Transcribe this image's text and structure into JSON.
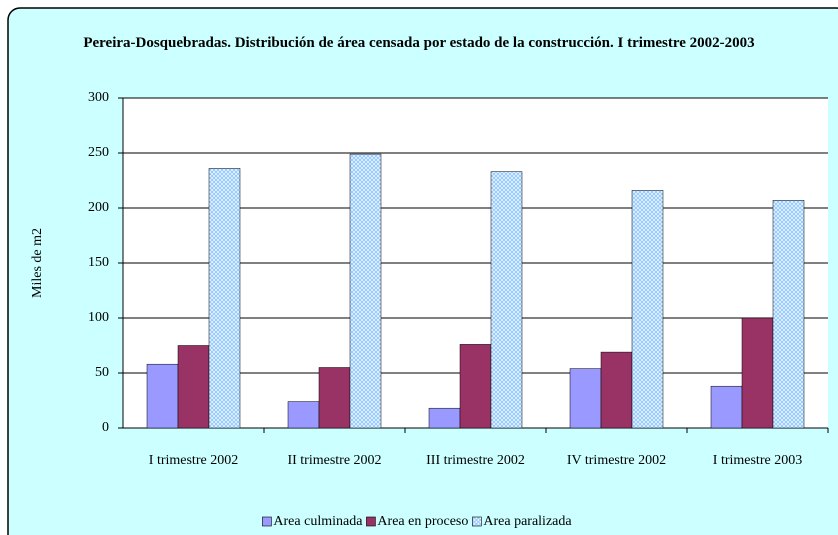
{
  "chart_data": {
    "type": "bar",
    "title": "Pereira-Dosquebradas. Distribución de área censada por estado de la construcción. I trimestre 2002-2003",
    "y_label": "Miles de m2",
    "categories": [
      "I trimestre 2002",
      "II trimestre 2002",
      "III trimestre 2002",
      "IV trimestre 2002",
      "I trimestre 2003"
    ],
    "series": [
      {
        "name": "Area culminada",
        "color": "#9999ff",
        "values": [
          58,
          24,
          18,
          54,
          38
        ]
      },
      {
        "name": "Area en proceso",
        "color": "#993366",
        "values": [
          75,
          55,
          76,
          69,
          100
        ]
      },
      {
        "name": "Area paralizada",
        "color": "#99ccff",
        "pattern": "crosshatch",
        "values": [
          236,
          249,
          233,
          216,
          207
        ]
      }
    ],
    "ylim": [
      0,
      300
    ],
    "yticks": [
      0,
      50,
      100,
      150,
      200,
      250,
      300
    ],
    "grid": true,
    "legend": "bottom"
  }
}
